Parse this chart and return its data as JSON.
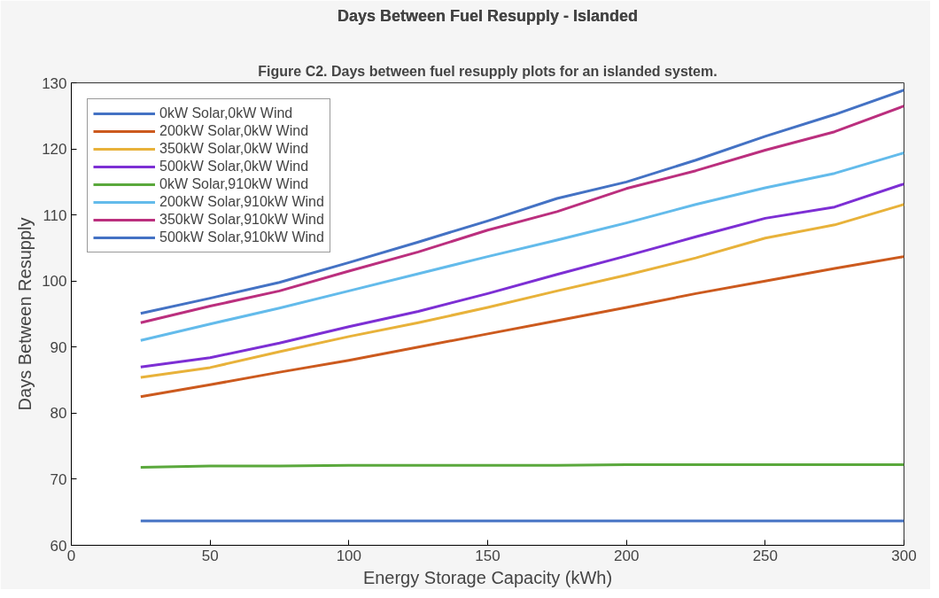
{
  "chart_data": {
    "type": "line",
    "title": "Days Between Fuel Resupply - Islanded",
    "annotations": [
      "Figure C2. Days between fuel resupply plots for an islanded system."
    ],
    "xlabel": "Energy Storage Capacity (kWh)",
    "ylabel": "Days Between Resupply",
    "x": [
      25,
      50,
      75,
      100,
      125,
      150,
      175,
      200,
      225,
      250,
      275,
      300
    ],
    "xlim": [
      0,
      300
    ],
    "xticks": [
      0,
      50,
      100,
      150,
      200,
      250,
      300
    ],
    "ylim": [
      60,
      130
    ],
    "yticks": [
      60,
      70,
      80,
      90,
      100,
      110,
      120,
      130
    ],
    "grid": false,
    "legend": "top left",
    "line_style": "solid",
    "marker": "none",
    "series": [
      {
        "name": "0kW Solar,0kW Wind",
        "color": "#4472c4",
        "values": [
          63.7,
          63.7,
          63.7,
          63.7,
          63.7,
          63.7,
          63.7,
          63.7,
          63.7,
          63.7,
          63.7,
          63.7
        ]
      },
      {
        "name": "200kW Solar,0kW Wind",
        "color": "#cc5a1e",
        "values": [
          82.5,
          84.3,
          86.2,
          88.0,
          90.0,
          92.0,
          94.0,
          96.0,
          98.1,
          100.0,
          101.9,
          103.7
        ]
      },
      {
        "name": "350kW Solar,0kW Wind",
        "color": "#e8b23a",
        "values": [
          85.4,
          86.9,
          89.3,
          91.6,
          93.7,
          96.0,
          98.5,
          100.9,
          103.5,
          106.5,
          108.5,
          111.6
        ]
      },
      {
        "name": "500kW Solar,0kW Wind",
        "color": "#7d2fd4",
        "values": [
          87.0,
          88.4,
          90.6,
          93.1,
          95.4,
          98.1,
          101.0,
          103.8,
          106.7,
          109.5,
          111.2,
          114.7
        ]
      },
      {
        "name": "0kW Solar,910kW Wind",
        "color": "#5aa83c",
        "values": [
          71.8,
          72.0,
          72.0,
          72.1,
          72.1,
          72.1,
          72.1,
          72.2,
          72.2,
          72.2,
          72.2,
          72.2
        ]
      },
      {
        "name": "200kW Solar,910kW Wind",
        "color": "#63bbeb",
        "values": [
          91.0,
          93.5,
          95.9,
          98.5,
          101.1,
          103.7,
          106.2,
          108.8,
          111.6,
          114.1,
          116.3,
          119.4
        ]
      },
      {
        "name": "350kW Solar,910kW Wind",
        "color": "#bb2f7e",
        "values": [
          93.7,
          96.2,
          98.5,
          101.5,
          104.4,
          107.7,
          110.5,
          114.0,
          116.7,
          119.8,
          122.6,
          126.5
        ]
      },
      {
        "name": "500kW Solar,910kW Wind",
        "color": "#4472c4",
        "values": [
          95.1,
          97.4,
          99.8,
          102.8,
          105.9,
          109.1,
          112.5,
          115.0,
          118.3,
          121.9,
          125.2,
          128.9
        ]
      }
    ]
  }
}
